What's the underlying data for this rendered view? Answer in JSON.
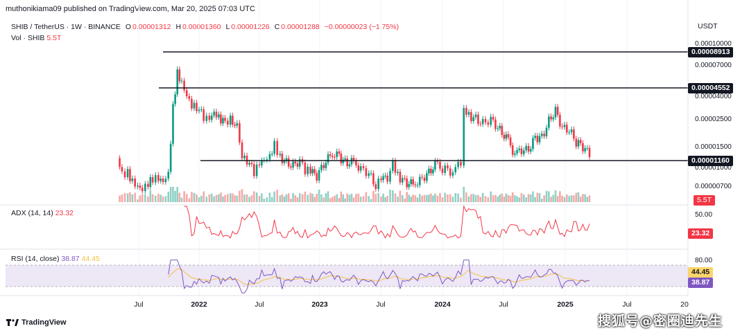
{
  "header": {
    "publisher": "muthonikiama09 published on TradingView.com, Mar 20, 2025 07:03 UTC"
  },
  "legend": {
    "symbol": "SHIB / TetherUS · 1W · BINANCE",
    "o_label": "O",
    "o_value": "0.00001312",
    "h_label": "H",
    "h_value": "0.00001360",
    "l_label": "L",
    "l_value": "0.00001226",
    "c_label": "C",
    "c_value": "0.00001288",
    "change": "−0.00000023 (−1.75%)",
    "vol_label": "Vol · SHIB",
    "vol_value": "5.5T"
  },
  "currency": "USDT",
  "price_ticks": [
    "0.00010000",
    "0.00007000",
    "0.00004000",
    "0.00002500",
    "0.00001500",
    "0.00001000",
    "0.00000700"
  ],
  "level_labels": [
    "0.00008913",
    "0.00004552",
    "0.00001160"
  ],
  "vol_badge": "5.5T",
  "adx": {
    "label": "ADX (14, 14)",
    "value": "23.32",
    "tick": "50.00"
  },
  "rsi": {
    "label": "RSI (14, close)",
    "value": "38.87",
    "ma_value": "44.45",
    "tick": "80.00"
  },
  "x_ticks": [
    "Jul",
    "2022",
    "Jul",
    "2023",
    "Jul",
    "2024",
    "Jul",
    "2025",
    "Jul",
    "20"
  ],
  "footer": {
    "brand": "TradingView",
    "watermark": "搜狐号@密圈迪先生"
  },
  "colors": {
    "up": "#089981",
    "down": "#f23645",
    "adx": "#f23645",
    "rsi": "#7e57c2",
    "rsi_ma": "#f5c242",
    "rsi_band": "#ede7f6"
  },
  "chart_data": {
    "type": "line",
    "title": "SHIB / TetherUS · 1W · BINANCE",
    "xlabel": "",
    "ylabel": "",
    "y_scale": "log",
    "ylim": [
      5.5e-06,
      0.00012
    ],
    "horizontal_levels": [
      8.913e-05,
      4.552e-05,
      1.16e-05
    ],
    "series": [
      {
        "values": [
          [
            "2021-05-01",
            1.2e-05
          ],
          [
            "2021-05-15",
            8.5e-06
          ],
          [
            "2021-06-01",
            9e-06
          ],
          [
            "2021-06-15",
            7.8e-06
          ],
          [
            "2021-07-01",
            7.2e-06
          ],
          [
            "2021-07-15",
            6.8e-06
          ],
          [
            "2021-08-01",
            7.5e-06
          ],
          [
            "2021-08-15",
            8e-06
          ],
          [
            "2021-09-01",
            7.8e-06
          ],
          [
            "2021-09-15",
            7.2e-06
          ],
          [
            "2021-10-01",
            8.5e-06
          ],
          [
            "2021-10-15",
            3.2e-05
          ],
          [
            "2021-10-28",
            6.5e-05
          ],
          [
            "2021-11-10",
            5.5e-05
          ],
          [
            "2021-11-25",
            4.3e-05
          ],
          [
            "2021-12-10",
            3.5e-05
          ],
          [
            "2022-01-01",
            3.2e-05
          ],
          [
            "2022-01-15",
            2.6e-05
          ],
          [
            "2022-02-01",
            2.5e-05
          ],
          [
            "2022-02-15",
            2.8e-05
          ],
          [
            "2022-03-01",
            2.6e-05
          ],
          [
            "2022-03-20",
            2.4e-05
          ],
          [
            "2022-04-05",
            2.7e-05
          ],
          [
            "2022-04-25",
            2.2e-05
          ],
          [
            "2022-05-10",
            1.3e-05
          ],
          [
            "2022-06-01",
            1.1e-05
          ],
          [
            "2022-06-15",
            9e-06
          ],
          [
            "2022-07-01",
            1.05e-05
          ],
          [
            "2022-07-15",
            1.1e-05
          ],
          [
            "2022-08-01",
            1.2e-05
          ],
          [
            "2022-08-15",
            1.55e-05
          ],
          [
            "2022-09-01",
            1.25e-05
          ],
          [
            "2022-09-20",
            1.1e-05
          ],
          [
            "2022-10-10",
            1.05e-05
          ],
          [
            "2022-10-30",
            1.15e-05
          ],
          [
            "2022-11-15",
            9.5e-06
          ],
          [
            "2022-12-01",
            9.2e-06
          ],
          [
            "2022-12-20",
            8.5e-06
          ],
          [
            "2023-01-10",
            1.05e-05
          ],
          [
            "2023-02-05",
            1.35e-05
          ],
          [
            "2023-02-25",
            1.25e-05
          ],
          [
            "2023-03-15",
            1.1e-05
          ],
          [
            "2023-04-10",
            1.12e-05
          ],
          [
            "2023-05-01",
            9.8e-06
          ],
          [
            "2023-05-25",
            9e-06
          ],
          [
            "2023-06-15",
            7e-06
          ],
          [
            "2023-07-01",
            7.8e-06
          ],
          [
            "2023-07-20",
            8.2e-06
          ],
          [
            "2023-08-05",
            1.05e-05
          ],
          [
            "2023-08-20",
            8.5e-06
          ],
          [
            "2023-09-10",
            7.5e-06
          ],
          [
            "2023-10-05",
            7.2e-06
          ],
          [
            "2023-10-25",
            7.8e-06
          ],
          [
            "2023-11-15",
            8.8e-06
          ],
          [
            "2023-12-10",
            1.05e-05
          ],
          [
            "2024-01-01",
            9.8e-06
          ],
          [
            "2024-02-01",
            9.2e-06
          ],
          [
            "2024-02-25",
            1.1e-05
          ],
          [
            "2024-03-05",
            3.3e-05
          ],
          [
            "2024-03-20",
            2.8e-05
          ],
          [
            "2024-04-10",
            2.6e-05
          ],
          [
            "2024-05-01",
            2.4e-05
          ],
          [
            "2024-05-25",
            2.6e-05
          ],
          [
            "2024-06-15",
            2.2e-05
          ],
          [
            "2024-07-10",
            1.8e-05
          ],
          [
            "2024-08-05",
            1.3e-05
          ],
          [
            "2024-08-25",
            1.4e-05
          ],
          [
            "2024-09-15",
            1.4e-05
          ],
          [
            "2024-10-05",
            1.8e-05
          ],
          [
            "2024-10-25",
            1.8e-05
          ],
          [
            "2024-11-15",
            2.5e-05
          ],
          [
            "2024-12-05",
            3.1e-05
          ],
          [
            "2024-12-25",
            2.2e-05
          ],
          [
            "2025-01-15",
            2.1e-05
          ],
          [
            "2025-02-05",
            1.65e-05
          ],
          [
            "2025-02-25",
            1.5e-05
          ],
          [
            "2025-03-17",
            1.29e-05
          ]
        ]
      }
    ]
  }
}
